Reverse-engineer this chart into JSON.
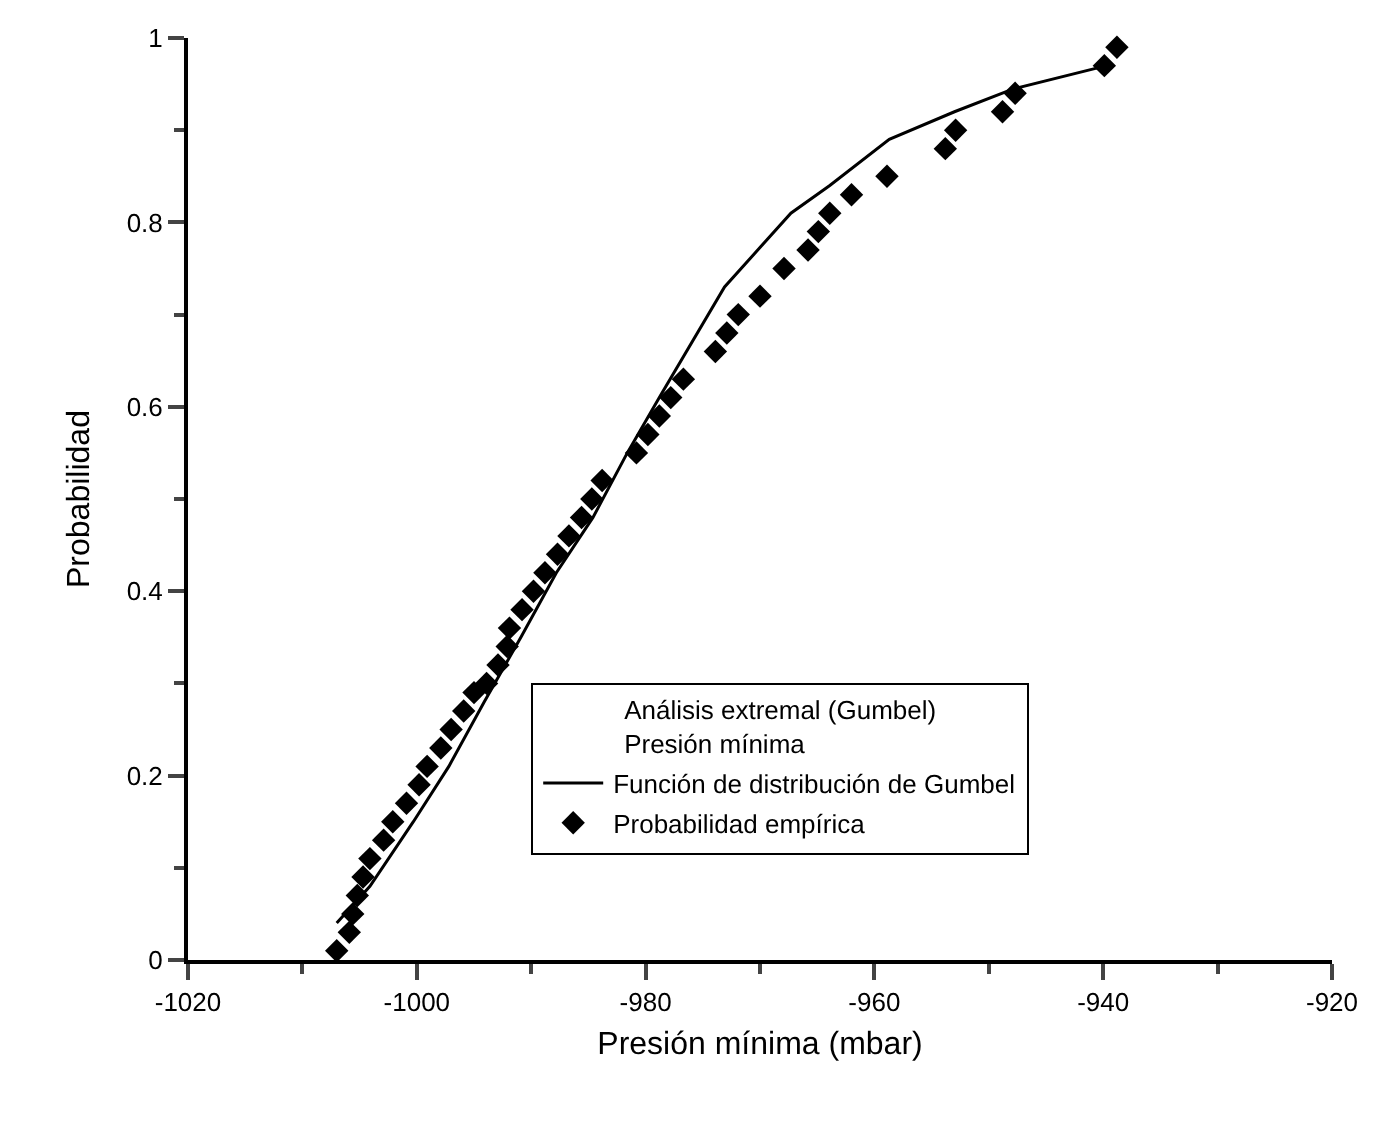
{
  "chart_data": {
    "type": "scatter",
    "xlabel": "Presión mínima (mbar)",
    "ylabel": "Probabilidad",
    "legend_title": "Análisis extremal (Gumbel)\nPresión mínima",
    "xlim": [
      -1020,
      -920
    ],
    "xticks": [
      -1020,
      -1000,
      -980,
      -960,
      -940,
      -920
    ],
    "ylim": [
      0,
      1
    ],
    "yticks": [
      0,
      0.2,
      0.4,
      0.6,
      0.8,
      1
    ],
    "grid": false,
    "legend": "bottom right",
    "series": [
      {
        "name": "Función de distribución de Gumbel",
        "type": "line",
        "color": "#000000",
        "marker": "none",
        "line_style": "solid",
        "x": [
          -1007,
          -1004.1,
          -1000.3,
          -997.2,
          -994.1,
          -990.9,
          -987.8,
          -984.6,
          -981.6,
          -978.8,
          -973.1,
          -967.3,
          -963.9,
          -958.7,
          -953,
          -947.8,
          -939.7
        ],
        "values": [
          0.04,
          0.08,
          0.15,
          0.21,
          0.28,
          0.35,
          0.42,
          0.48,
          0.55,
          0.61,
          0.73,
          0.81,
          0.84,
          0.89,
          0.92,
          0.945,
          0.97
        ]
      },
      {
        "name": "Probabilidad empírica",
        "color": "#000000",
        "marker": "diamond",
        "x": [
          -1007,
          -1005.9,
          -1005.6,
          -1005.2,
          -1004.7,
          -1004.1,
          -1002.9,
          -1002.1,
          -1000.9,
          -999.8,
          -999.1,
          -997.9,
          -997,
          -995.9,
          -995,
          -993.9,
          -992.9,
          -992.1,
          -991.9,
          -990.8,
          -989.8,
          -988.8,
          -987.7,
          -986.7,
          -985.6,
          -984.7,
          -983.8,
          -980.8,
          -979.8,
          -978.8,
          -977.8,
          -976.7,
          -973.9,
          -972.9,
          -971.9,
          -970,
          -967.9,
          -965.8,
          -964.9,
          -963.9,
          -962,
          -958.9,
          -953.8,
          -952.9,
          -948.8,
          -947.7,
          -939.9,
          -938.8
        ],
        "values": [
          0.01,
          0.03,
          0.05,
          0.07,
          0.09,
          0.11,
          0.13,
          0.15,
          0.17,
          0.19,
          0.21,
          0.23,
          0.25,
          0.27,
          0.29,
          0.3,
          0.32,
          0.34,
          0.36,
          0.38,
          0.4,
          0.42,
          0.44,
          0.46,
          0.48,
          0.5,
          0.52,
          0.55,
          0.57,
          0.59,
          0.61,
          0.63,
          0.66,
          0.68,
          0.7,
          0.72,
          0.75,
          0.77,
          0.79,
          0.81,
          0.83,
          0.85,
          0.88,
          0.9,
          0.92,
          0.94,
          0.97,
          0.99
        ]
      }
    ]
  }
}
